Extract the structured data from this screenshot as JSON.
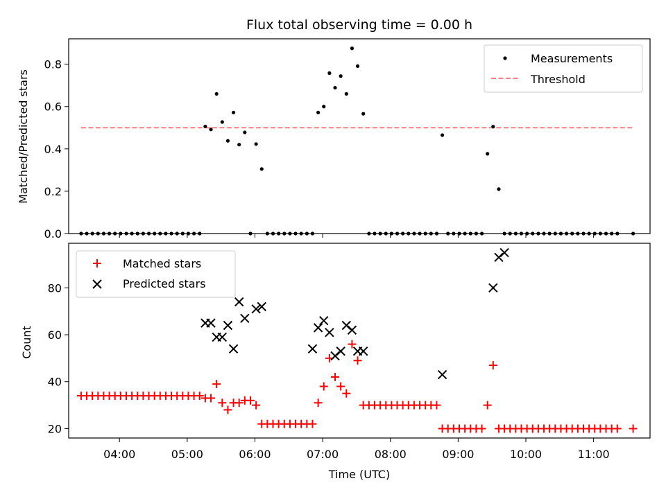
{
  "chart_data": [
    {
      "type": "scatter",
      "title": "Flux total observing time = 0.00 h",
      "xlabel": "",
      "ylabel": "Matched/Predicted stars",
      "ylim": [
        0,
        0.92
      ],
      "xlim": [
        "03:15",
        "11:50"
      ],
      "yticks": [
        "0.0",
        "0.2",
        "0.4",
        "0.6",
        "0.8"
      ],
      "ytick_values": [
        0,
        0.2,
        0.4,
        0.6,
        0.8
      ],
      "legend_position": "upper right",
      "series": [
        {
          "name": "Measurements",
          "marker": "dot",
          "color": "#000000",
          "x": [
            "03:26",
            "03:31",
            "03:36",
            "03:41",
            "03:46",
            "03:51",
            "03:56",
            "04:01",
            "04:06",
            "04:11",
            "04:16",
            "04:21",
            "04:26",
            "04:31",
            "04:36",
            "04:41",
            "04:46",
            "04:51",
            "04:56",
            "05:01",
            "05:06",
            "05:11",
            "05:16",
            "05:21",
            "05:26",
            "05:31",
            "05:36",
            "05:41",
            "05:46",
            "05:51",
            "05:56",
            "06:01",
            "06:06",
            "06:11",
            "06:16",
            "06:21",
            "06:26",
            "06:31",
            "06:36",
            "06:41",
            "06:46",
            "06:51",
            "06:56",
            "07:01",
            "07:06",
            "07:11",
            "07:16",
            "07:21",
            "07:26",
            "07:31",
            "07:36",
            "07:41",
            "07:46",
            "07:51",
            "07:56",
            "08:01",
            "08:06",
            "08:11",
            "08:16",
            "08:21",
            "08:26",
            "08:31",
            "08:36",
            "08:41",
            "08:46",
            "08:51",
            "08:56",
            "09:01",
            "09:06",
            "09:11",
            "09:16",
            "09:21",
            "09:26",
            "09:31",
            "09:36",
            "09:41",
            "09:46",
            "09:51",
            "09:56",
            "10:01",
            "10:06",
            "10:11",
            "10:16",
            "10:21",
            "10:26",
            "10:31",
            "10:36",
            "10:41",
            "10:46",
            "10:51",
            "10:56",
            "11:01",
            "11:06",
            "11:11",
            "11:16",
            "11:21",
            "11:35"
          ],
          "y": [
            0,
            0,
            0,
            0,
            0,
            0,
            0,
            0,
            0,
            0,
            0,
            0,
            0,
            0,
            0,
            0,
            0,
            0,
            0,
            0,
            0,
            0,
            0.506,
            0.492,
            0.66,
            0.527,
            0.438,
            0.572,
            0.42,
            0.478,
            0,
            0.423,
            0.305,
            0,
            0,
            0,
            0,
            0,
            0,
            0,
            0,
            0,
            0.572,
            0.6,
            0.758,
            0.689,
            0.744,
            0.66,
            0.875,
            0.791,
            0.566,
            0,
            0,
            0,
            0,
            0,
            0,
            0,
            0,
            0,
            0,
            0,
            0,
            0,
            0.465,
            0,
            0,
            0,
            0,
            0,
            0,
            0,
            0.377,
            0.505,
            0.21,
            0,
            0,
            0,
            0,
            0,
            0,
            0,
            0,
            0,
            0,
            0,
            0,
            0,
            0,
            0,
            0,
            0,
            0,
            0,
            0,
            0,
            0
          ]
        },
        {
          "name": "Threshold",
          "marker": "dashed-line",
          "color": "#ff7f7f",
          "x": [
            "03:26",
            "11:35"
          ],
          "y": [
            0.5,
            0.5
          ]
        }
      ]
    },
    {
      "type": "scatter",
      "title": "",
      "xlabel": "Time (UTC)",
      "ylabel": "Count",
      "ylim": [
        16,
        99
      ],
      "xlim": [
        "03:15",
        "11:50"
      ],
      "yticks": [
        "20",
        "40",
        "60",
        "80"
      ],
      "ytick_values": [
        20,
        40,
        60,
        80
      ],
      "xticks": [
        "04:00",
        "05:00",
        "06:00",
        "07:00",
        "08:00",
        "09:00",
        "10:00",
        "11:00"
      ],
      "legend_position": "upper left",
      "series": [
        {
          "name": "Matched stars",
          "marker": "plus",
          "color": "#ff0000",
          "x": [
            "03:26",
            "03:31",
            "03:36",
            "03:41",
            "03:46",
            "03:51",
            "03:56",
            "04:01",
            "04:06",
            "04:11",
            "04:16",
            "04:21",
            "04:26",
            "04:31",
            "04:36",
            "04:41",
            "04:46",
            "04:51",
            "04:56",
            "05:01",
            "05:06",
            "05:11",
            "05:16",
            "05:21",
            "05:26",
            "05:31",
            "05:36",
            "05:41",
            "05:46",
            "05:51",
            "05:56",
            "06:01",
            "06:06",
            "06:11",
            "06:16",
            "06:21",
            "06:26",
            "06:31",
            "06:36",
            "06:41",
            "06:46",
            "06:51",
            "06:56",
            "07:01",
            "07:06",
            "07:11",
            "07:16",
            "07:21",
            "07:26",
            "07:31",
            "07:36",
            "07:41",
            "07:46",
            "07:51",
            "07:56",
            "08:01",
            "08:06",
            "08:11",
            "08:16",
            "08:21",
            "08:26",
            "08:31",
            "08:36",
            "08:41",
            "08:46",
            "08:51",
            "08:56",
            "09:01",
            "09:06",
            "09:11",
            "09:16",
            "09:21",
            "09:26",
            "09:31",
            "09:36",
            "09:41",
            "09:46",
            "09:51",
            "09:56",
            "10:01",
            "10:06",
            "10:11",
            "10:16",
            "10:21",
            "10:26",
            "10:31",
            "10:36",
            "10:41",
            "10:46",
            "10:51",
            "10:56",
            "11:01",
            "11:06",
            "11:11",
            "11:16",
            "11:21",
            "11:35"
          ],
          "y": [
            34,
            34,
            34,
            34,
            34,
            34,
            34,
            34,
            34,
            34,
            34,
            34,
            34,
            34,
            34,
            34,
            34,
            34,
            34,
            34,
            34,
            34,
            33,
            33,
            39,
            31,
            28,
            31,
            31,
            32,
            32,
            30,
            22,
            22,
            22,
            22,
            22,
            22,
            22,
            22,
            22,
            22,
            31,
            38,
            50,
            42,
            38,
            35,
            56,
            49,
            30,
            30,
            30,
            30,
            30,
            30,
            30,
            30,
            30,
            30,
            30,
            30,
            30,
            30,
            20,
            20,
            20,
            20,
            20,
            20,
            20,
            20,
            30,
            47,
            20,
            20,
            20,
            20,
            20,
            20,
            20,
            20,
            20,
            20,
            20,
            20,
            20,
            20,
            20,
            20,
            20,
            20,
            20,
            20,
            20,
            20,
            20
          ]
        },
        {
          "name": "Predicted stars",
          "marker": "x",
          "color": "#000000",
          "x": [
            "05:16",
            "05:21",
            "05:26",
            "05:31",
            "05:36",
            "05:41",
            "05:46",
            "05:51",
            "06:01",
            "06:06",
            "06:51",
            "06:56",
            "07:01",
            "07:06",
            "07:11",
            "07:16",
            "07:21",
            "07:26",
            "07:31",
            "07:36",
            "08:46",
            "09:31",
            "09:36",
            "09:41"
          ],
          "y": [
            65,
            65,
            59,
            59,
            64,
            54,
            74,
            67,
            71,
            72,
            54,
            63,
            66,
            61,
            51,
            53,
            64,
            62,
            53,
            53,
            43,
            80,
            93,
            95
          ]
        }
      ]
    }
  ]
}
